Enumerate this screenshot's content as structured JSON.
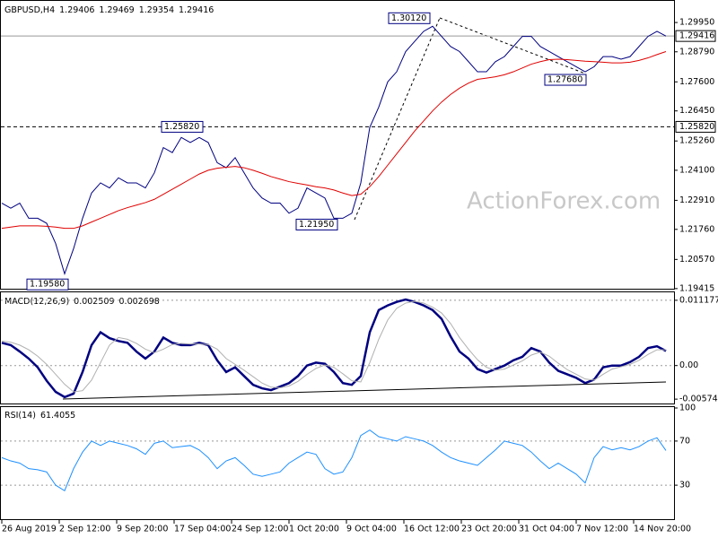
{
  "chart_data": [
    {
      "type": "line",
      "title": "GBPUSD,H4",
      "header_values": [
        1.29406,
        1.29469,
        1.29354,
        1.29416
      ],
      "watermark": "ActionForex.com",
      "ylim": [
        1.1941,
        1.3077
      ],
      "yticks": [
        {
          "value": 1.2995,
          "label": "1.29950"
        },
        {
          "value": 1.2879,
          "label": "1.28790"
        },
        {
          "value": 1.276,
          "label": "1.27600"
        },
        {
          "value": 1.2645,
          "label": "1.26450"
        },
        {
          "value": 1.2526,
          "label": "1.25260"
        },
        {
          "value": 1.241,
          "label": "1.24100"
        },
        {
          "value": 1.2291,
          "label": "1.22910"
        },
        {
          "value": 1.2176,
          "label": "1.21760"
        },
        {
          "value": 1.2057,
          "label": "1.20570"
        },
        1.19415
      ],
      "price_tags": [
        {
          "value": 1.29416,
          "label": "1.29416"
        },
        {
          "value": 1.2582,
          "label": "1.25820"
        }
      ],
      "annotations": [
        {
          "value": 1.3012,
          "label": "1.30120"
        },
        {
          "value": 1.2768,
          "label": "1.27680"
        },
        {
          "value": 1.2582,
          "label": "1.25820"
        },
        {
          "value": 1.2195,
          "label": "1.21950"
        },
        {
          "value": 1.1958,
          "label": "1.19580"
        }
      ],
      "series": [
        {
          "color": "#000080",
          "values": [
            1.228,
            1.226,
            1.228,
            1.222,
            1.222,
            1.22,
            1.212,
            1.2,
            1.21,
            1.222,
            1.232,
            1.236,
            1.234,
            1.238,
            1.236,
            1.236,
            1.234,
            1.24,
            1.25,
            1.248,
            1.254,
            1.252,
            1.254,
            1.252,
            1.244,
            1.242,
            1.246,
            1.24,
            1.234,
            1.23,
            1.228,
            1.228,
            1.224,
            1.226,
            1.234,
            1.232,
            1.23,
            1.222,
            1.222,
            1.224,
            1.236,
            1.258,
            1.266,
            1.276,
            1.28,
            1.288,
            1.292,
            1.296,
            1.298,
            1.294,
            1.29,
            1.288,
            1.284,
            1.28,
            1.28,
            1.284,
            1.286,
            1.29,
            1.294,
            1.294,
            1.29,
            1.288,
            1.286,
            1.284,
            1.282,
            1.28,
            1.282,
            1.286,
            1.286,
            1.285,
            1.286,
            1.29,
            1.294,
            1.296,
            1.29416
          ]
        },
        {
          "color": "#e00000",
          "values": [
            1.218,
            1.2185,
            1.219,
            1.219,
            1.219,
            1.2188,
            1.2185,
            1.218,
            1.218,
            1.219,
            1.2205,
            1.222,
            1.2235,
            1.225,
            1.2262,
            1.2272,
            1.2282,
            1.2295,
            1.2315,
            1.2335,
            1.2355,
            1.2375,
            1.2395,
            1.241,
            1.2418,
            1.2422,
            1.2425,
            1.242,
            1.241,
            1.2398,
            1.2385,
            1.2375,
            1.2365,
            1.2358,
            1.2352,
            1.2345,
            1.234,
            1.2332,
            1.232,
            1.231,
            1.2315,
            1.2345,
            1.2385,
            1.243,
            1.2475,
            1.252,
            1.2565,
            1.2605,
            1.2645,
            1.268,
            1.271,
            1.2735,
            1.2755,
            1.277,
            1.2775,
            1.278,
            1.2788,
            1.28,
            1.2815,
            1.283,
            1.284,
            1.2848,
            1.285,
            1.2848,
            1.2845,
            1.2842,
            1.284,
            1.2838,
            1.2835,
            1.2835,
            1.2838,
            1.2845,
            1.2855,
            1.2868,
            1.288
          ]
        }
      ]
    },
    {
      "type": "line",
      "title": "MACD(12,26,9)",
      "header_values": [
        0.002509,
        0.002698
      ],
      "ylim": [
        -0.00634,
        0.01254
      ],
      "yticks": [
        0.011177,
        {
          "value": 0,
          "label": "0.00"
        },
        -0.005746
      ],
      "series": [
        {
          "color": "#000080",
          "values": [
            0.0039,
            0.0035,
            0.0024,
            0.0012,
            -0.0003,
            -0.0026,
            -0.0045,
            -0.0054,
            -0.0048,
            -0.0011,
            0.0035,
            0.0057,
            0.0047,
            0.0042,
            0.0039,
            0.0024,
            0.0012,
            0.0024,
            0.0048,
            0.0039,
            0.0035,
            0.0035,
            0.0039,
            0.0035,
            0.0009,
            -0.0011,
            -0.0003,
            -0.0018,
            -0.0033,
            -0.0039,
            -0.0042,
            -0.0036,
            -0.003,
            -0.0018,
            0,
            0.0005,
            0.0003,
            -0.0011,
            -0.003,
            -0.0033,
            -0.0018,
            0.0057,
            0.0095,
            0.0103,
            0.0109,
            0.0113,
            0.0109,
            0.0103,
            0.0095,
            0.008,
            0.005,
            0.0024,
            0.0012,
            -0.0006,
            -0.0012,
            -0.0006,
            0,
            0.0009,
            0.0015,
            0.003,
            0.0024,
            0.0005,
            -0.0009,
            -0.0015,
            -0.0021,
            -0.003,
            -0.0024,
            -0.0003,
            0,
            0,
            0.0006,
            0.0015,
            0.003,
            0.0033,
            0.002509
          ]
        },
        {
          "color": "#b0b0b0",
          "values": [
            0.0042,
            0.004,
            0.0035,
            0.0027,
            0.0016,
            0.0002,
            -0.0015,
            -0.0032,
            -0.0045,
            -0.0043,
            -0.0025,
            0.0005,
            0.0035,
            0.0048,
            0.0045,
            0.0038,
            0.0028,
            0.0022,
            0.0028,
            0.0036,
            0.0038,
            0.0037,
            0.0037,
            0.0036,
            0.0028,
            0.0012,
            0.0002,
            -0.0008,
            -0.0019,
            -0.003,
            -0.0037,
            -0.0038,
            -0.0035,
            -0.0027,
            -0.0015,
            -0.0005,
            0.0001,
            -0.0003,
            -0.0014,
            -0.0026,
            -0.0028,
            0.0005,
            0.0045,
            0.0078,
            0.0098,
            0.0107,
            0.011,
            0.0107,
            0.01,
            0.009,
            0.0072,
            0.0048,
            0.0028,
            0.001,
            -0.0003,
            -0.0008,
            -0.0006,
            0.0001,
            0.0008,
            0.0018,
            0.0023,
            0.0016,
            0.0004,
            -0.0007,
            -0.0015,
            -0.0023,
            -0.0025,
            -0.0015,
            -0.0006,
            -0.0002,
            0.0002,
            0.0009,
            0.0019,
            0.0027,
            0.002698
          ]
        }
      ]
    },
    {
      "type": "line",
      "title": "RSI(14)",
      "header_values": [
        61.4055
      ],
      "ylim": [
        0,
        100
      ],
      "yticks": [
        100,
        70,
        30
      ],
      "series": [
        {
          "color": "#1e90ff",
          "values": [
            55,
            52,
            50,
            45,
            44,
            42,
            30,
            25,
            45,
            60,
            70,
            66,
            70,
            68,
            66,
            63,
            58,
            68,
            70,
            64,
            65,
            66,
            62,
            55,
            45,
            52,
            55,
            48,
            40,
            38,
            40,
            42,
            50,
            55,
            60,
            58,
            45,
            40,
            42,
            55,
            75,
            80,
            74,
            72,
            70,
            74,
            72,
            70,
            66,
            60,
            55,
            52,
            50,
            48,
            55,
            62,
            70,
            68,
            66,
            60,
            52,
            45,
            50,
            45,
            40,
            32,
            55,
            65,
            62,
            64,
            62,
            65,
            70,
            73,
            61.4055
          ]
        }
      ]
    }
  ],
  "x_labels": [
    "26 Aug 2019",
    "2 Sep 12:00",
    "9 Sep 20:00",
    "17 Sep 04:00",
    "24 Sep 12:00",
    "1 Oct 20:00",
    "9 Oct 04:00",
    "16 Oct 12:00",
    "23 Oct 20:00",
    "31 Oct 04:00",
    "7 Nov 12:00",
    "14 Nov 20:00"
  ]
}
